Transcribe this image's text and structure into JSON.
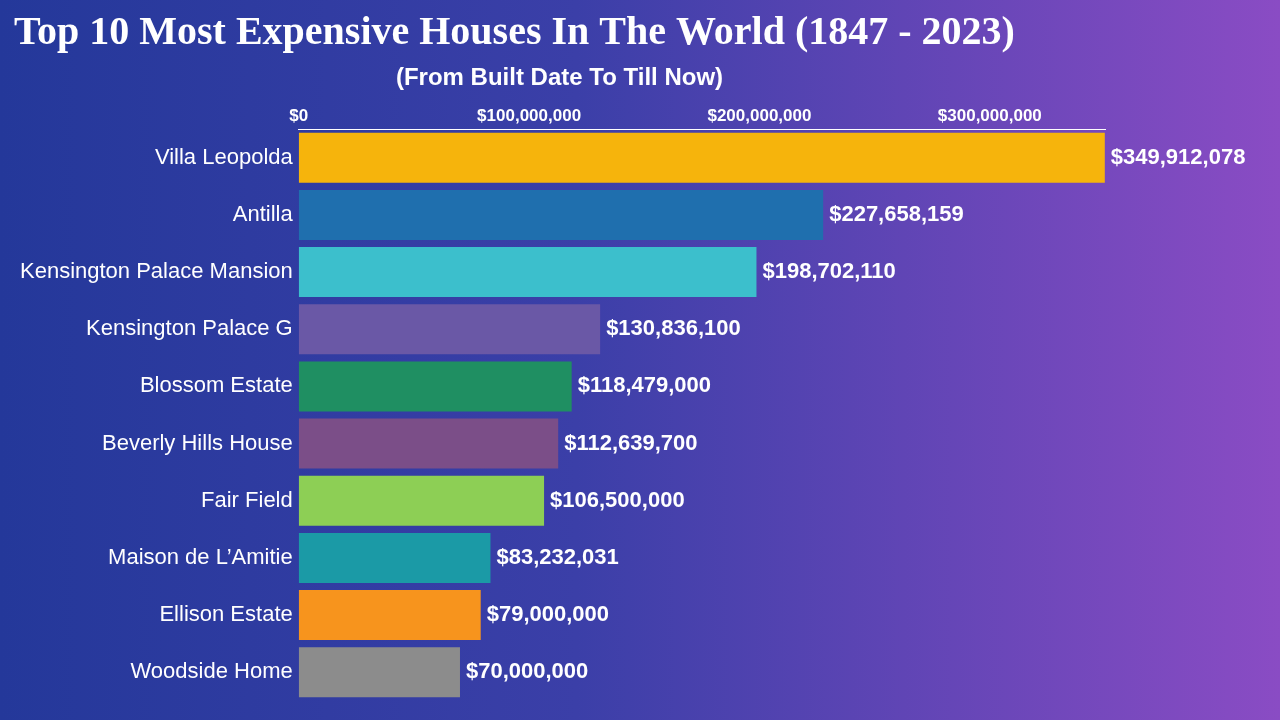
{
  "chart_data": {
    "type": "bar",
    "orientation": "horizontal",
    "title": "Top 10 Most Expensive Houses In The World (1847 - 2023)",
    "subtitle": "(From Built Date To Till Now)",
    "categories": [
      "Villa Leopolda",
      "Antilla",
      "Kensington Palace Mansion",
      "Kensington Palace G",
      "Blossom Estate",
      "Beverly Hills House",
      "Fair Field",
      "Maison de L’Amitie",
      "Ellison Estate",
      "Woodside Home"
    ],
    "values": [
      349912078,
      227658159,
      198702110,
      130836100,
      118479000,
      112639700,
      106500000,
      83232031,
      79000000,
      70000000
    ],
    "value_labels": [
      "$349,912,078",
      "$227,658,159",
      "$198,702,110",
      "$130,836,100",
      "$118,479,000",
      "$112,639,700",
      "$106,500,000",
      "$83,232,031",
      "$79,000,000",
      "$70,000,000"
    ],
    "colors": [
      "#f6b40c",
      "#1f6fae",
      "#3cbfcc",
      "#6a58a6",
      "#1f8f62",
      "#7b4e88",
      "#8dcf55",
      "#1b9aa6",
      "#f7941d",
      "#8c8c8c"
    ],
    "xlim": [
      0,
      350000000
    ],
    "xticks": [
      {
        "value": 0,
        "label": "$0"
      },
      {
        "value": 100000000,
        "label": "$100,000,000"
      },
      {
        "value": 200000000,
        "label": "$200,000,000"
      },
      {
        "value": 300000000,
        "label": "$300,000,000"
      }
    ],
    "grid": false,
    "data_labels": true
  }
}
